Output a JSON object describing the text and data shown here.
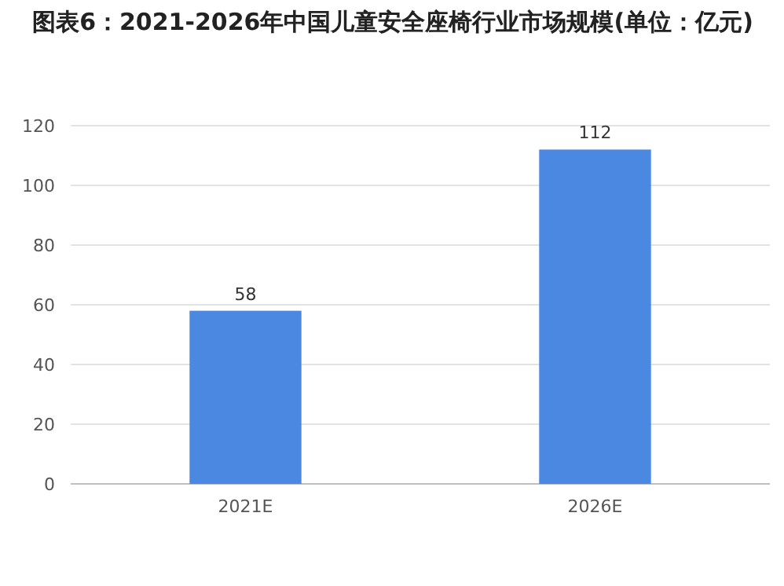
{
  "chart_data": {
    "type": "bar",
    "title": "图表6：2021-2026年中国儿童安全座椅行业市场规模(单位：亿元)",
    "categories": [
      "2021E",
      "2026E"
    ],
    "values": [
      58,
      112
    ],
    "color": "#4a88e2",
    "ylim": [
      0,
      120
    ],
    "yticks": [
      0,
      20,
      40,
      60,
      80,
      100,
      120
    ],
    "grid": "y",
    "data_labels": true
  }
}
